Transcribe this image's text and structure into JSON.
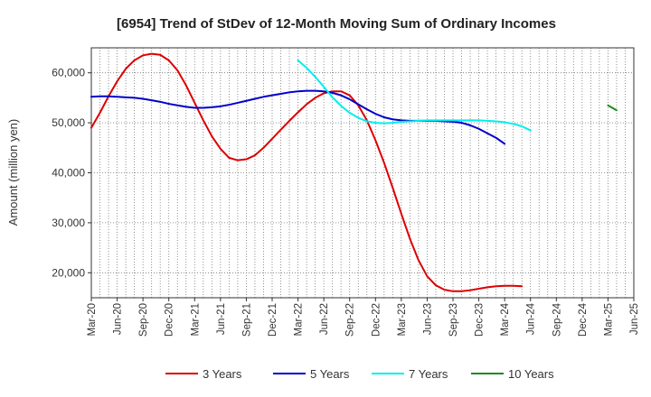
{
  "chart_data": {
    "type": "line",
    "title": "[6954]  Trend of StDev of 12-Month Moving Sum of Ordinary Incomes",
    "xlabel": "",
    "ylabel": "Amount (million yen)",
    "ylim": [
      15000,
      65000
    ],
    "yticks": [
      20000,
      30000,
      40000,
      50000,
      60000
    ],
    "ytick_labels": [
      "20,000",
      "30,000",
      "40,000",
      "50,000",
      "60,000"
    ],
    "grid": true,
    "legend_position": "bottom",
    "xtick_labels": [
      "Mar-20",
      "Jun-20",
      "Sep-20",
      "Dec-20",
      "Mar-21",
      "Jun-21",
      "Sep-21",
      "Dec-21",
      "Mar-22",
      "Jun-22",
      "Sep-22",
      "Dec-22",
      "Mar-23",
      "Jun-23",
      "Sep-23",
      "Dec-23",
      "Mar-24",
      "Jun-24",
      "Sep-24",
      "Dec-24",
      "Mar-25",
      "Jun-25"
    ],
    "x_index_range": [
      0,
      63
    ],
    "series": [
      {
        "name": "3 Years",
        "color": "#dd0000",
        "start_index": 0,
        "values": [
          49000,
          52000,
          55300,
          58300,
          60800,
          62500,
          63500,
          63800,
          63600,
          62500,
          60500,
          57500,
          54000,
          50500,
          47300,
          44800,
          43000,
          42500,
          42700,
          43500,
          45000,
          46800,
          48600,
          50400,
          52100,
          53700,
          55000,
          55900,
          56300,
          56300,
          55500,
          53500,
          50500,
          46500,
          42000,
          37000,
          31800,
          26800,
          22500,
          19300,
          17500,
          16600,
          16300,
          16300,
          16500,
          16800,
          17100,
          17300,
          17400,
          17400,
          17300
        ]
      },
      {
        "name": "5 Years",
        "color": "#0000cc",
        "start_index": 0,
        "values": [
          55200,
          55300,
          55300,
          55200,
          55100,
          55000,
          54800,
          54500,
          54200,
          53800,
          53500,
          53200,
          53000,
          53000,
          53100,
          53300,
          53600,
          54000,
          54400,
          54800,
          55200,
          55500,
          55800,
          56100,
          56300,
          56400,
          56400,
          56300,
          56000,
          55500,
          54700,
          53700,
          52700,
          51800,
          51100,
          50700,
          50500,
          50400,
          50400,
          50400,
          50400,
          50300,
          50200,
          50000,
          49500,
          48800,
          47900,
          47000,
          45800
        ]
      },
      {
        "name": "7 Years",
        "color": "#00eeee",
        "start_index": 24,
        "values": [
          62500,
          61000,
          59200,
          57200,
          55100,
          53400,
          52000,
          51000,
          50300,
          50000,
          49900,
          50000,
          50200,
          50300,
          50400,
          50500,
          50500,
          50500,
          50500,
          50500,
          50500,
          50500,
          50400,
          50300,
          50100,
          49800,
          49300,
          48500
        ]
      },
      {
        "name": "10 Years",
        "color": "#228822",
        "start_index": 60,
        "values": [
          53500,
          52500
        ]
      }
    ]
  }
}
